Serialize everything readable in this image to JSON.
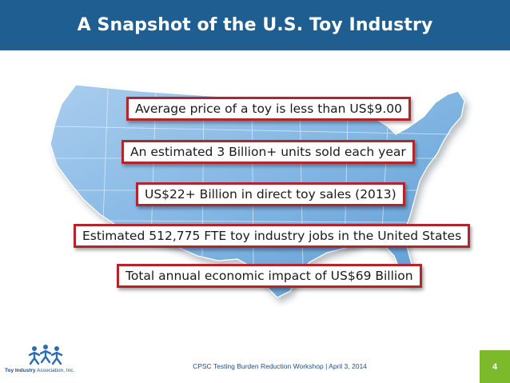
{
  "header": {
    "title": "A Snapshot of the U.S. Toy Industry"
  },
  "callouts": [
    "Average price of a toy is less than US$9.00",
    "An estimated 3 Billion+ units sold each year",
    "US$22+ Billion in direct toy sales (2013)",
    "Estimated 512,775 FTE toy industry jobs in the United States",
    "Total annual economic impact of US$69 Billion"
  ],
  "footer": {
    "text": "CPSC Testing Burden Reduction Workshop | April 3, 2014",
    "logo_name": "Toy Industry",
    "logo_suffix": " Association, Inc.",
    "page_number": "4"
  },
  "colors": {
    "header_bg": "#1f5e91",
    "callout_border": "#b3242c",
    "page_badge": "#7cba2c",
    "map_fill": "#7fb2df"
  },
  "icons": {
    "map": "usa-map-graphic",
    "logo": "toy-industry-logo-icon"
  }
}
